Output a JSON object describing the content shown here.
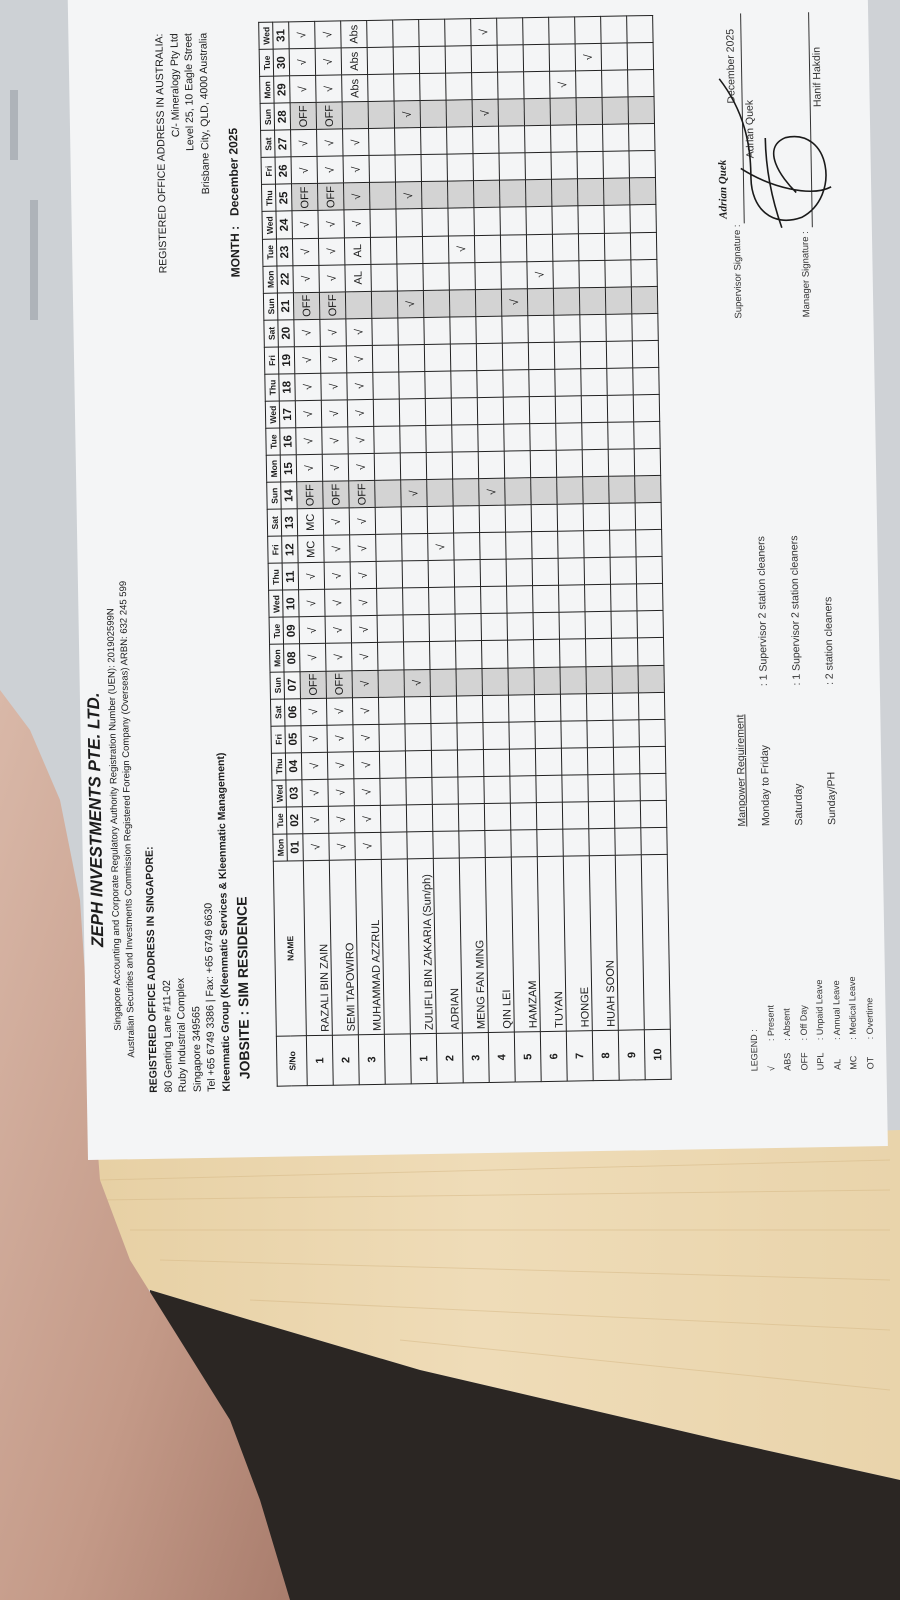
{
  "company": {
    "name": "ZEPH INVESTMENTS PTE. LTD.",
    "registration_lines": [
      "Singapore Accounting and Corporate Regulatory Authority Registration Number (UEN): 201902599N",
      "Australian Securities and Investments Commission Registered Foreign Company (Overseas) ARBN: 632 245 599"
    ]
  },
  "singapore_address": {
    "heading": "REGISTERED OFFICE ADDRESS IN SINGAPORE:",
    "lines": [
      "80 Genting Lane #11-02",
      "Ruby Industrial Complex",
      "Singapore 349565",
      "Tel +65 6749 3386 | Fax: +65 6749 6630"
    ],
    "group": "Kleenmatic Group (Kleenmatic Services & Kleenmatic Management)"
  },
  "australia_address": {
    "heading": "REGISTERED OFFICE ADDRESS IN AUSTRALIA:",
    "lines": [
      "C/- Mineralogy Pty Ltd",
      "Level 25, 10 Eagle Street",
      "Brisbane City, QLD, 4000 Australia"
    ]
  },
  "jobsite": "JOBSITE : SIM RESIDENCE",
  "month": {
    "label": "MONTH :",
    "value": "December 2025"
  },
  "table": {
    "col_sno": "S/No",
    "col_name": "NAME",
    "shaded_dates": [
      "07",
      "14",
      "21",
      "25",
      "28"
    ],
    "days": [
      {
        "dow": "Mon",
        "date": "01"
      },
      {
        "dow": "Tue",
        "date": "02"
      },
      {
        "dow": "Wed",
        "date": "03"
      },
      {
        "dow": "Thu",
        "date": "04"
      },
      {
        "dow": "Fri",
        "date": "05"
      },
      {
        "dow": "Sat",
        "date": "06"
      },
      {
        "dow": "Sun",
        "date": "07"
      },
      {
        "dow": "Mon",
        "date": "08"
      },
      {
        "dow": "Tue",
        "date": "09"
      },
      {
        "dow": "Wed",
        "date": "10"
      },
      {
        "dow": "Thu",
        "date": "11"
      },
      {
        "dow": "Fri",
        "date": "12"
      },
      {
        "dow": "Sat",
        "date": "13"
      },
      {
        "dow": "Sun",
        "date": "14"
      },
      {
        "dow": "Mon",
        "date": "15"
      },
      {
        "dow": "Tue",
        "date": "16"
      },
      {
        "dow": "Wed",
        "date": "17"
      },
      {
        "dow": "Thu",
        "date": "18"
      },
      {
        "dow": "Fri",
        "date": "19"
      },
      {
        "dow": "Sat",
        "date": "20"
      },
      {
        "dow": "Sun",
        "date": "21"
      },
      {
        "dow": "Mon",
        "date": "22"
      },
      {
        "dow": "Tue",
        "date": "23"
      },
      {
        "dow": "Wed",
        "date": "24"
      },
      {
        "dow": "Thu",
        "date": "25"
      },
      {
        "dow": "Fri",
        "date": "26"
      },
      {
        "dow": "Sat",
        "date": "27"
      },
      {
        "dow": "Sun",
        "date": "28"
      },
      {
        "dow": "Mon",
        "date": "29"
      },
      {
        "dow": "Tue",
        "date": "30"
      },
      {
        "dow": "Wed",
        "date": "31"
      }
    ],
    "rows": [
      {
        "sno": "1",
        "name": "RAZALI BIN ZAIN",
        "marks": {
          "01": "√",
          "02": "√",
          "03": "√",
          "04": "√",
          "05": "√",
          "06": "√",
          "07": "OFF",
          "08": "√",
          "09": "√",
          "10": "√",
          "11": "√",
          "12": "MC",
          "13": "MC",
          "14": "OFF",
          "15": "√",
          "16": "√",
          "17": "√",
          "18": "√",
          "19": "√",
          "20": "√",
          "21": "OFF",
          "22": "√",
          "23": "√",
          "24": "√",
          "25": "OFF",
          "26": "√",
          "27": "√",
          "28": "OFF",
          "29": "√",
          "30": "√",
          "31": "√"
        }
      },
      {
        "sno": "2",
        "name": "SEMI TAPOWIRO",
        "marks": {
          "01": "√",
          "02": "√",
          "03": "√",
          "04": "√",
          "05": "√",
          "06": "√",
          "07": "OFF",
          "08": "√",
          "09": "√",
          "10": "√",
          "11": "√",
          "12": "√",
          "13": "√",
          "14": "OFF",
          "15": "√",
          "16": "√",
          "17": "√",
          "18": "√",
          "19": "√",
          "20": "√",
          "21": "OFF",
          "22": "√",
          "23": "√",
          "24": "√",
          "25": "OFF",
          "26": "√",
          "27": "√",
          "28": "OFF",
          "29": "√",
          "30": "√",
          "31": "√"
        }
      },
      {
        "sno": "3",
        "name": "MUHAMMAD AZZRUL",
        "marks": {
          "01": "√",
          "02": "√",
          "03": "√",
          "04": "√",
          "05": "√",
          "06": "√",
          "07": "√",
          "08": "√",
          "09": "√",
          "10": "√",
          "11": "√",
          "12": "√",
          "13": "√",
          "14": "OFF",
          "15": "√",
          "16": "√",
          "17": "√",
          "18": "√",
          "19": "√",
          "20": "√",
          "22": "AL",
          "23": "AL",
          "24": "√",
          "25": "√",
          "26": "√",
          "27": "√",
          "29": "Abs",
          "30": "Abs",
          "31": "Abs"
        }
      },
      {
        "sno": "",
        "name": "",
        "marks": {}
      },
      {
        "sno": "1",
        "name": "ZULIFLI BIN ZAKARIA (Sun/ph)",
        "marks": {
          "07": "√",
          "14": "√",
          "21": "√",
          "25": "√",
          "28": "√"
        }
      },
      {
        "sno": "2",
        "name": "ADRIAN",
        "marks": {
          "12": "√"
        }
      },
      {
        "sno": "3",
        "name": "MENG FAN MING",
        "marks": {
          "23": "√"
        }
      },
      {
        "sno": "4",
        "name": "QIN LEI",
        "marks": {
          "14": "√",
          "28": "√",
          "31": "√"
        }
      },
      {
        "sno": "5",
        "name": "HAMZAM",
        "marks": {
          "21": "√"
        }
      },
      {
        "sno": "6",
        "name": "TUYAN",
        "marks": {
          "22": "√"
        }
      },
      {
        "sno": "7",
        "name": "HONGE",
        "marks": {
          "29": "√"
        }
      },
      {
        "sno": "8",
        "name": "HUAH SOON",
        "marks": {
          "30": "√"
        }
      },
      {
        "sno": "9",
        "name": "",
        "marks": {}
      },
      {
        "sno": "10",
        "name": "",
        "marks": {}
      }
    ]
  },
  "legend": {
    "title": "LEGEND :",
    "items": [
      {
        "code": "√",
        "label": ": Present"
      },
      {
        "code": "ABS",
        "label": ": Absent"
      },
      {
        "code": "OFF",
        "label": ": Off Day"
      },
      {
        "code": "UPL",
        "label": ": Unpaid Leave"
      },
      {
        "code": "AL",
        "label": ": Annual Leave"
      },
      {
        "code": "MC",
        "label": ": Medical Leave"
      },
      {
        "code": "OT",
        "label": ": Overtime"
      }
    ]
  },
  "manpower": {
    "title": "Manpower Requirement",
    "items": [
      {
        "day": "Monday to Friday",
        "value": ": 1 Supervisor 2 station cleaners"
      },
      {
        "day": "Saturday",
        "value": ": 1 Supervisor 2 station cleaners"
      },
      {
        "day": "Sunday/PH",
        "value": ": 2 station cleaners"
      }
    ]
  },
  "signatures": {
    "supervisor_label": "Supervisor Signature :",
    "supervisor_script": "Adrian Quek",
    "supervisor_name": "Adrian Quek",
    "date": "December 2025",
    "manager_label": "Manager Signature :",
    "manager_name": "Hanif Hakdin"
  },
  "colors": {
    "paper": "#f4f5f6",
    "shade": "#d3d3d3",
    "desk_wood": "#e9d3a8",
    "desk_dark": "#2b2623",
    "skin": "#c9a493"
  }
}
